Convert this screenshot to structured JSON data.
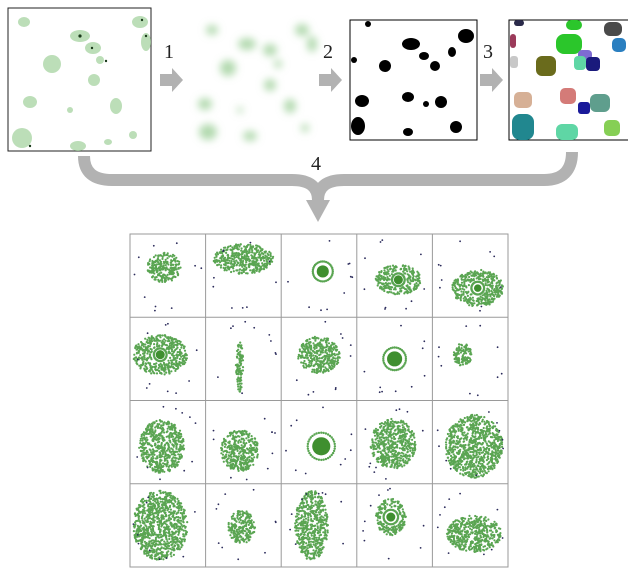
{
  "pipeline": {
    "steps": [
      {
        "label": "1"
      },
      {
        "label": "2"
      },
      {
        "label": "3"
      },
      {
        "label": "4"
      }
    ],
    "stage_names": [
      "input-image",
      "blurred-image",
      "binary-mask",
      "segmented-regions"
    ]
  },
  "colors": {
    "arrow": "#b2b2b2",
    "blob_green": "#8fc98a",
    "blob_green_dark": "#5aa552",
    "mask_black": "#000000",
    "dot_dark": "#2a2a5a",
    "grid_line": "#9a9a9a"
  },
  "segment_colors": [
    "#9b3a5a",
    "#2bc62b",
    "#4a4a4a",
    "#2a7fc0",
    "#6a6b1c",
    "#7e6bd2",
    "#1a1a7c",
    "#5fd6a5",
    "#d47b78",
    "#5f9e8d",
    "#d6b096",
    "#21878f",
    "#86cf55",
    "#c8c8c8"
  ],
  "grid": {
    "rows": 4,
    "cols": 5,
    "cell_count": 20
  }
}
